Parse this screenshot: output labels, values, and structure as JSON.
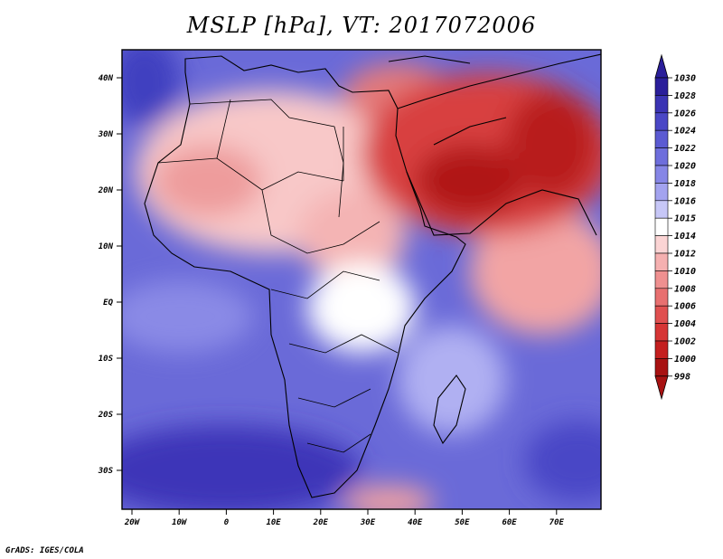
{
  "title": "MSLP [hPa], VT: 2017072006",
  "footer": "GrADS: IGES/COLA",
  "map": {
    "lon_labels": [
      "20W",
      "10W",
      "0",
      "10E",
      "20E",
      "30E",
      "40E",
      "50E",
      "60E",
      "70E"
    ],
    "lat_labels": [
      "40N",
      "30N",
      "20N",
      "10N",
      "EQ",
      "10S",
      "20S",
      "30S"
    ]
  },
  "colorbar": {
    "top_arrow_label": "1030",
    "bottom_arrow_label": "998",
    "levels": [
      "1028",
      "1026",
      "1024",
      "1022",
      "1020",
      "1018",
      "1016",
      "1015",
      "1014",
      "1012",
      "1010",
      "1008",
      "1006",
      "1004",
      "1002",
      "1000"
    ],
    "colors": [
      "#2a1e9a",
      "#3b34b4",
      "#4a47c6",
      "#5b5ad2",
      "#6e6edc",
      "#8686e6",
      "#a3a3ef",
      "#c7c7f7",
      "#ffffff",
      "#fbd4d4",
      "#f5b0b0",
      "#ef9090",
      "#e87070",
      "#e05050",
      "#d63535",
      "#c41f1f",
      "#a81212"
    ]
  }
}
